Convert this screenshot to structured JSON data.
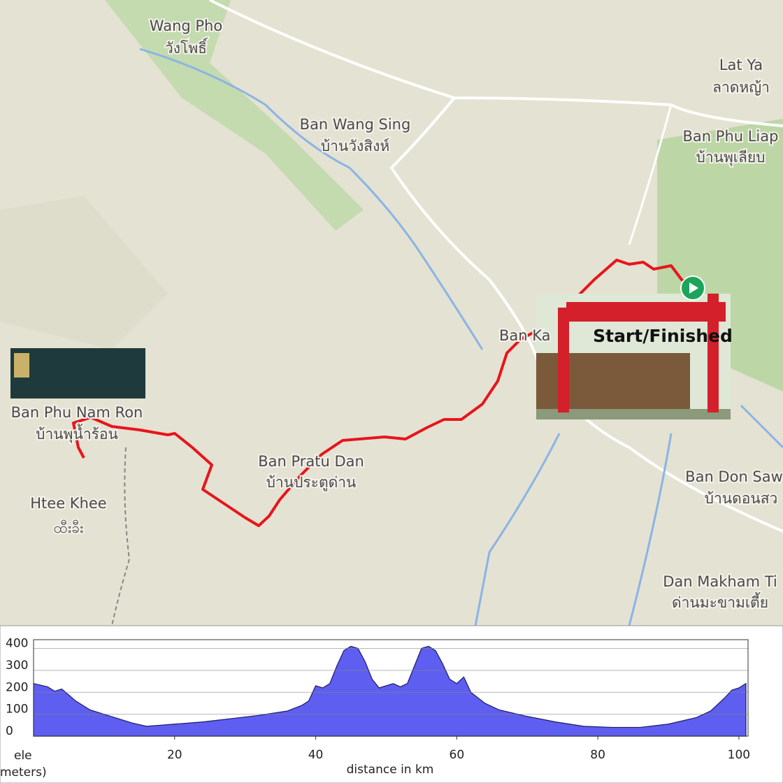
{
  "map": {
    "labels": [
      "Wang Pho",
      "วังโพธิ์",
      "Ban Wang Sing",
      "บ้านวังสิงห์",
      "Lat Ya",
      "ลาดหญ้า",
      "Ban Phu Liap",
      "บ้านพุเลียบ",
      "Ban Phu Nam Ron",
      "บ้านพุน้ำร้อน",
      "Htee Khee",
      "ထီးခီး",
      "Ban Pratu Dan",
      "บ้านประตูด่าน",
      "Ban Ka",
      "Ban Don Saw",
      "บ้านดอนสว",
      "Dan Makham Ti",
      "ด่านมะขามเตี้ย"
    ],
    "annotation": "Start/Finished"
  },
  "chart_data": {
    "type": "area",
    "color": "#5e5ef0",
    "ylabel": [
      "ele",
      "meters)"
    ],
    "xlabel": "distance in km",
    "x": [
      0,
      2,
      3,
      4,
      6,
      8,
      10,
      12,
      14,
      16,
      18,
      20,
      24,
      28,
      32,
      36,
      38,
      39,
      40,
      41,
      42,
      43,
      44,
      45,
      46,
      47,
      48,
      49,
      50,
      51,
      52,
      53,
      54,
      55,
      56,
      57,
      58,
      59,
      60,
      61,
      62,
      64,
      66,
      70,
      74,
      78,
      82,
      86,
      90,
      94,
      96,
      98,
      99,
      100,
      101
    ],
    "values": [
      240,
      225,
      205,
      215,
      160,
      120,
      100,
      80,
      60,
      45,
      50,
      55,
      65,
      80,
      95,
      115,
      140,
      160,
      230,
      220,
      240,
      320,
      390,
      410,
      400,
      340,
      260,
      220,
      230,
      240,
      225,
      240,
      320,
      400,
      410,
      390,
      330,
      260,
      240,
      270,
      200,
      150,
      120,
      90,
      65,
      45,
      40,
      40,
      55,
      85,
      115,
      175,
      210,
      220,
      240
    ],
    "xlim": [
      0,
      101.3
    ],
    "ylim": [
      0,
      440
    ],
    "xticks": [
      20,
      40,
      60,
      80,
      100
    ],
    "yticks": [
      0,
      100,
      200,
      300,
      400
    ],
    "grid": true
  }
}
